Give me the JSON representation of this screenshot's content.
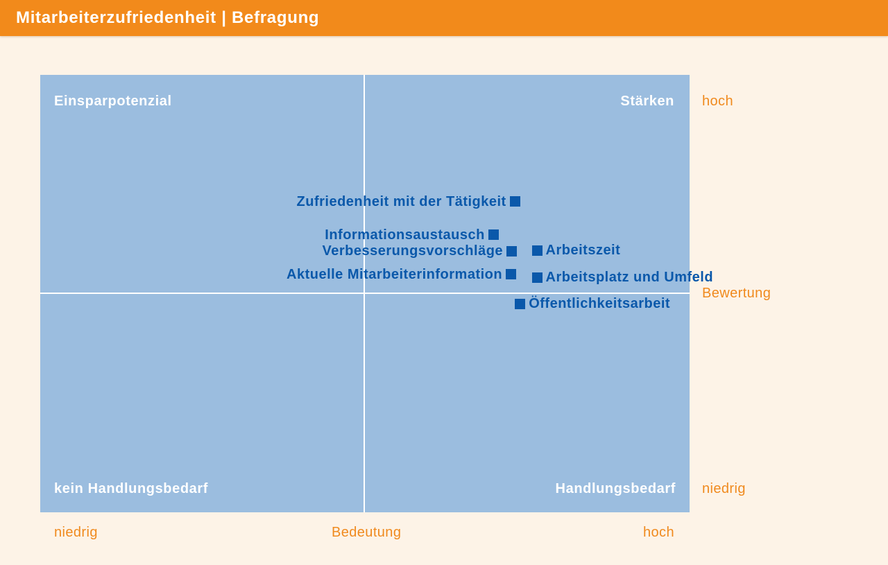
{
  "header": {
    "title": "Mitarbeiterzufriedenheit | Befragung"
  },
  "colors": {
    "header": "#F28A1B",
    "page_background": "#FDF3E7",
    "plot_background": "#9BBDDF",
    "divider": "#FFFFFF",
    "quadrant_label": "#FFFFFF",
    "axis_label": "#F08A1E",
    "point": "#0A58AA",
    "point_label": "#0A58AA"
  },
  "chart_data": {
    "type": "scatter",
    "title": "",
    "xlabel": "Bedeutung",
    "ylabel": "Bewertung",
    "x_ticks": [
      "niedrig",
      "hoch"
    ],
    "y_ticks": [
      "niedrig",
      "hoch"
    ],
    "grid": false,
    "quadrants": {
      "top_left": "Einsparpotenzial",
      "top_right": "Stärken",
      "bottom_left": "kein Handlungsbedarf",
      "bottom_right": "Handlungsbedarf"
    },
    "points": [
      {
        "label": "Zufriedenheit mit der Tätigkeit",
        "x": 0.731,
        "y": 0.71
      },
      {
        "label": "Informationsaustausch",
        "x": 0.698,
        "y": 0.634
      },
      {
        "label": "Verbesserungsvorschläge",
        "x": 0.726,
        "y": 0.597
      },
      {
        "label": "Aktuelle Mitarbeiterinformation",
        "x": 0.725,
        "y": 0.544
      },
      {
        "label": "Arbeitszeit",
        "x": 0.765,
        "y": 0.599
      },
      {
        "label": "Arbeitsplatz und Umfeld",
        "x": 0.765,
        "y": 0.537
      },
      {
        "label": "Öffentlichkeitsarbeit",
        "x": 0.739,
        "y": 0.477
      }
    ]
  }
}
